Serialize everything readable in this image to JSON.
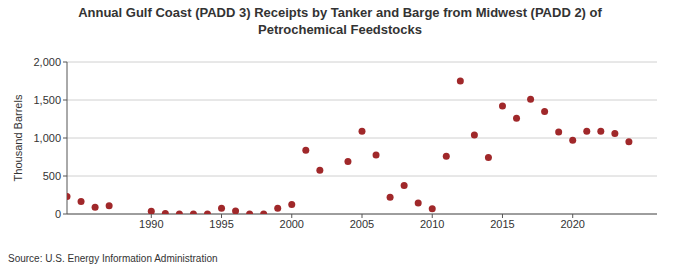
{
  "chart_data": {
    "type": "scatter",
    "title": "Annual Gulf Coast (PADD 3) Receipts by Tanker and Barge from Midwest (PADD 2) of Petrochemical Feedstocks",
    "y_label": "Thousand Barrels",
    "source": "Source: U.S. Energy Information Administration",
    "x": [
      1984,
      1985,
      1986,
      1987,
      1990,
      1991,
      1992,
      1993,
      1994,
      1995,
      1996,
      1997,
      1998,
      1999,
      2000,
      2001,
      2002,
      2004,
      2005,
      2006,
      2007,
      2008,
      2009,
      2010,
      2011,
      2012,
      2013,
      2014,
      2015,
      2016,
      2017,
      2018,
      2019,
      2020,
      2021,
      2022,
      2023,
      2024
    ],
    "values": [
      230,
      165,
      90,
      110,
      35,
      5,
      0,
      0,
      0,
      75,
      40,
      0,
      0,
      75,
      125,
      840,
      575,
      690,
      1090,
      775,
      220,
      375,
      145,
      70,
      760,
      1750,
      1040,
      745,
      1420,
      1260,
      1510,
      1350,
      1080,
      970,
      1090,
      1090,
      1060,
      950
    ],
    "color": "#a0282a",
    "marker": "circle",
    "xlim": [
      1984,
      2026
    ],
    "xticks": [
      1990,
      1995,
      2000,
      2005,
      2010,
      2015,
      2020
    ],
    "ylim": [
      0,
      2000
    ],
    "yticks": [
      0,
      500,
      {
        "value": 1000,
        "label": "1,000"
      },
      {
        "value": 1500,
        "label": "1,500"
      },
      {
        "value": 2000,
        "label": "2,000"
      }
    ],
    "grid": true
  }
}
